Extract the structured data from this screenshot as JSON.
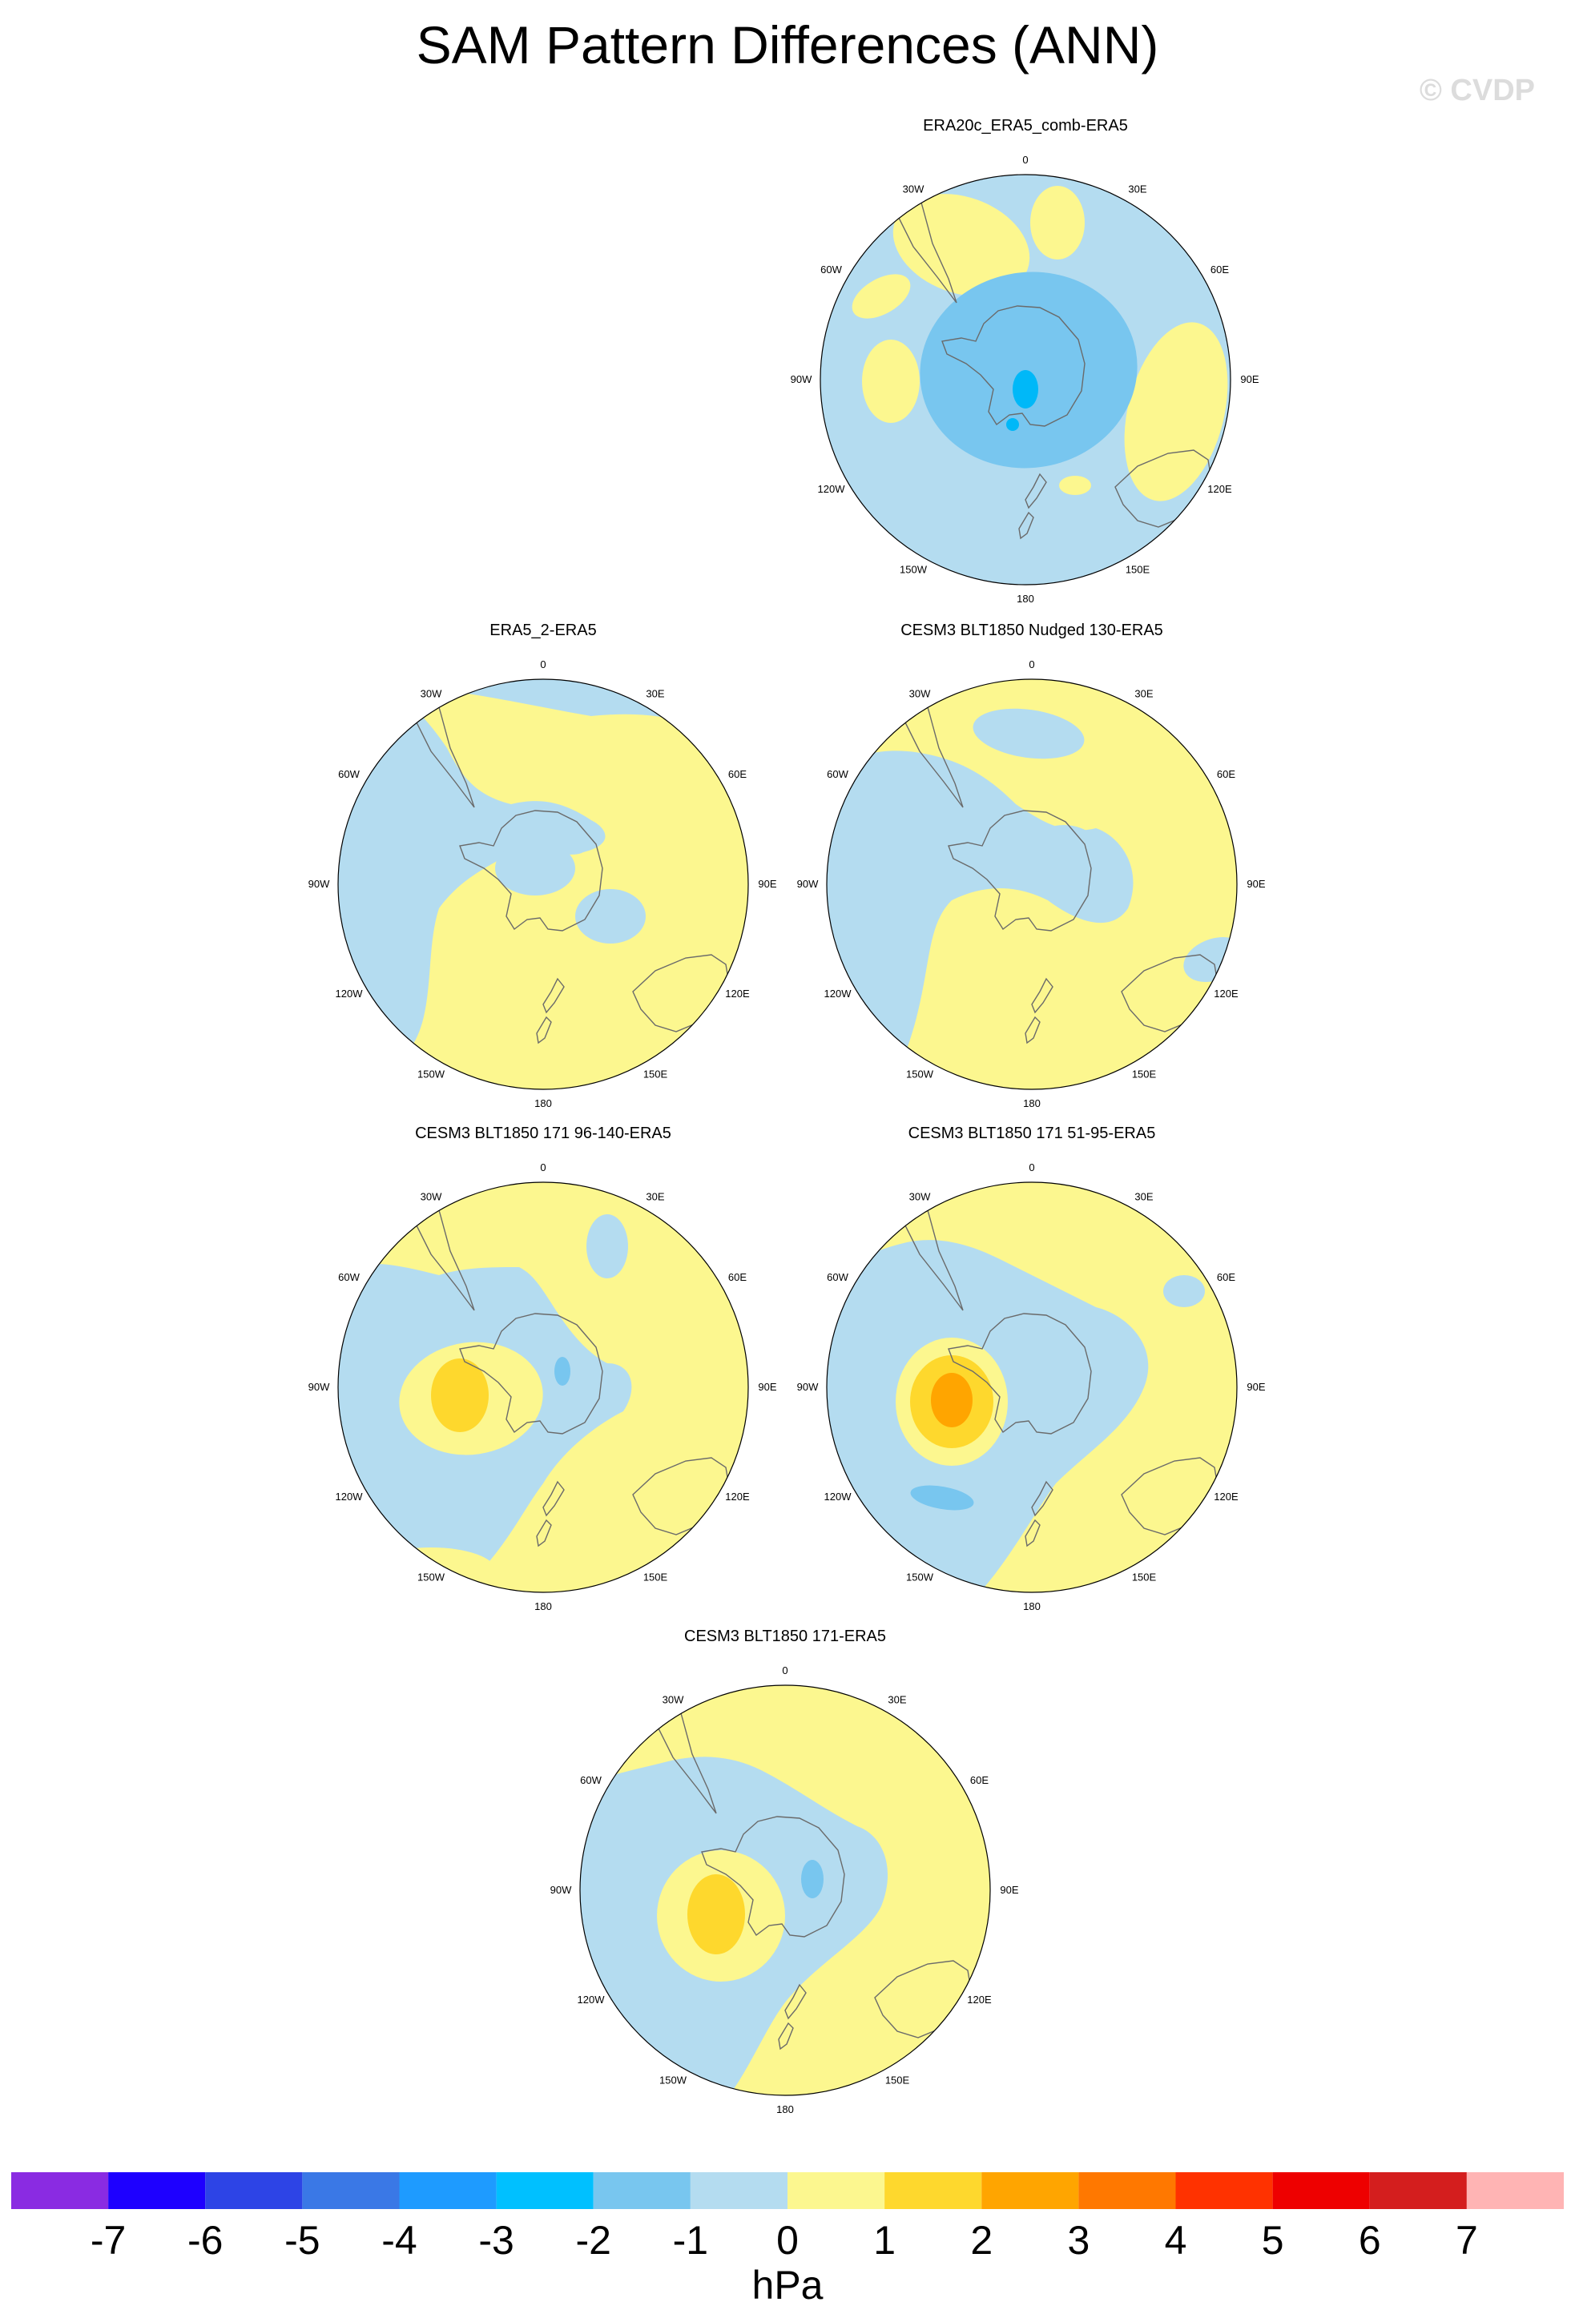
{
  "title": "SAM Pattern Differences (ANN)",
  "watermark": "© CVDP",
  "colors": {
    "land_outline": "#6a6a6a",
    "neg1": "#b4dcf0",
    "neg2": "#78c6ef",
    "neg3": "#00b8f8",
    "pos1": "#fcf78f",
    "pos2": "#fed82d",
    "pos3": "#ffa500"
  },
  "longitude_labels": [
    "0",
    "30E",
    "60E",
    "90E",
    "120E",
    "150E",
    "180",
    "150W",
    "120W",
    "90W",
    "60W",
    "30W"
  ],
  "panels": [
    {
      "id": "p1",
      "title": "ERA20c_ERA5_comb-ERA5",
      "pattern": "era20c"
    },
    {
      "id": "p2",
      "title": "ERA5_2-ERA5",
      "pattern": "era5_2"
    },
    {
      "id": "p3",
      "title": "CESM3 BLT1850 Nudged 130-ERA5",
      "pattern": "nudged"
    },
    {
      "id": "p4",
      "title": "CESM3 BLT1850 171 96-140-ERA5",
      "pattern": "m96"
    },
    {
      "id": "p5",
      "title": "CESM3 BLT1850 171 51-95-ERA5",
      "pattern": "m51"
    },
    {
      "id": "p6",
      "title": "CESM3 BLT1850 171-ERA5",
      "pattern": "m171"
    }
  ],
  "colorbar": {
    "colors": [
      "#8a2be2",
      "#1e00ff",
      "#2d44e6",
      "#3a78e6",
      "#1e9bff",
      "#00c0ff",
      "#78c6ef",
      "#b4dcf0",
      "#fcf78f",
      "#fed82d",
      "#ffa500",
      "#ff7800",
      "#ff3200",
      "#ee0000",
      "#d41e1e",
      "#ffb4b4"
    ],
    "tick_labels": [
      "-7",
      "-6",
      "-5",
      "-4",
      "-3",
      "-2",
      "-1",
      "0",
      "1",
      "2",
      "3",
      "4",
      "5",
      "6",
      "7"
    ],
    "units": "hPa"
  }
}
